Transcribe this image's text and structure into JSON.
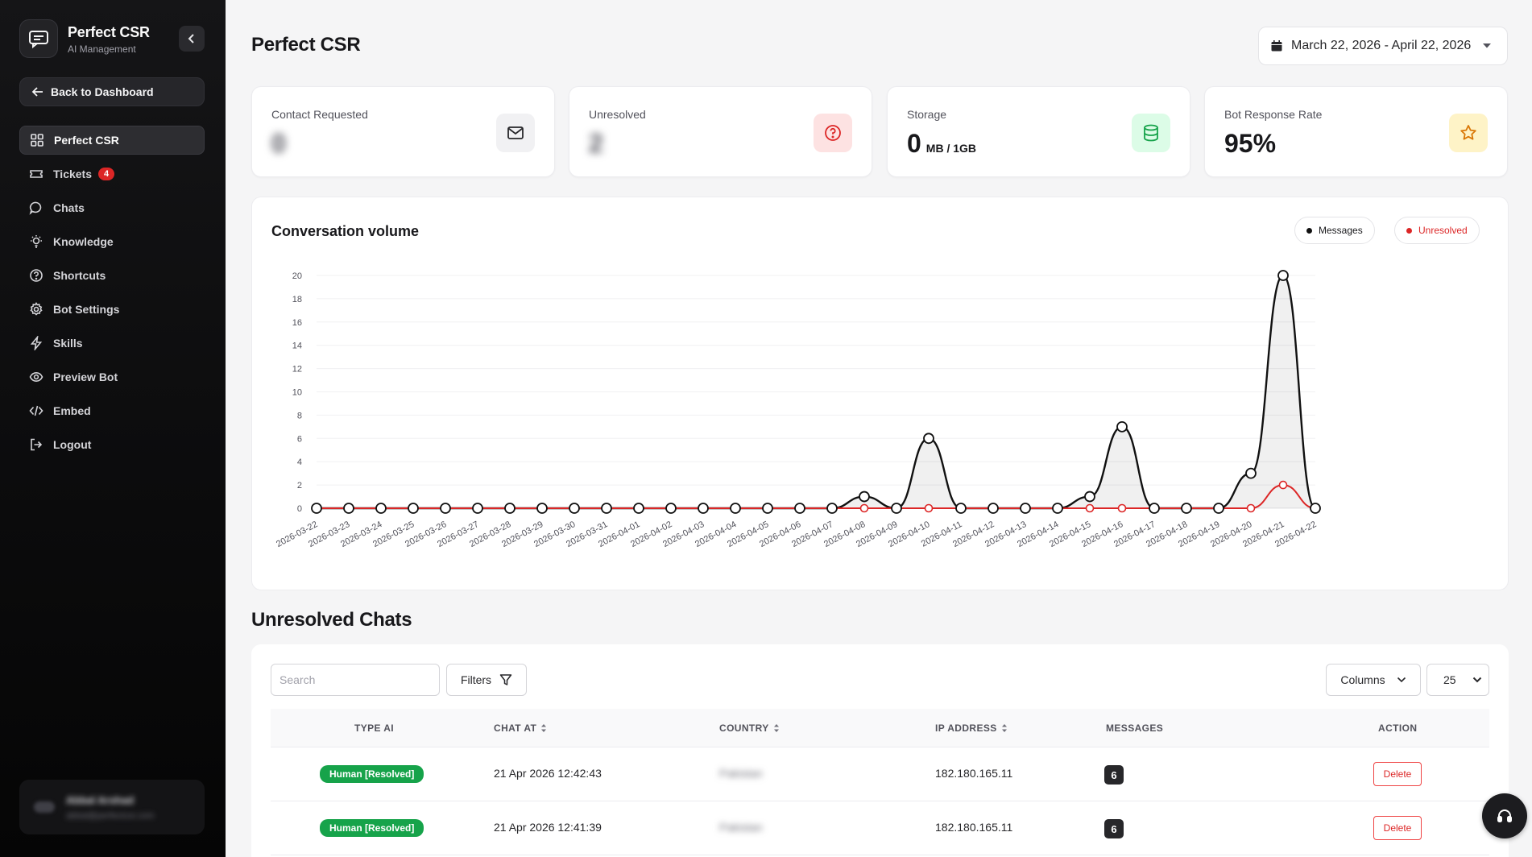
{
  "sidebar": {
    "brand_title": "Perfect CSR",
    "brand_subtitle": "AI Management",
    "back_label": "Back to Dashboard",
    "items": [
      {
        "label": "Perfect CSR",
        "icon": "grid-icon"
      },
      {
        "label": "Tickets",
        "icon": "ticket-icon",
        "badge": "4"
      },
      {
        "label": "Chats",
        "icon": "chat-bubble-icon"
      },
      {
        "label": "Knowledge",
        "icon": "lightbulb-icon"
      },
      {
        "label": "Shortcuts",
        "icon": "help-circle-icon"
      },
      {
        "label": "Bot Settings",
        "icon": "gear-icon"
      },
      {
        "label": "Skills",
        "icon": "lightning-icon"
      },
      {
        "label": "Preview Bot",
        "icon": "eye-icon"
      },
      {
        "label": "Embed",
        "icon": "code-icon"
      },
      {
        "label": "Logout",
        "icon": "logout-icon"
      }
    ],
    "user_name": "Abbal Arshad",
    "user_email": "abbal@perfectcsr.com"
  },
  "header": {
    "title": "Perfect CSR",
    "date_range": "March 22, 2026 - April 22, 2026"
  },
  "stats": [
    {
      "label": "Contact Requested",
      "value": "0",
      "icon": "mail-icon",
      "icon_bg": "#f1f1f3",
      "icon_color": "#27272a"
    },
    {
      "label": "Unresolved",
      "value": "2",
      "icon": "question-icon",
      "icon_bg": "#fde2e2",
      "icon_color": "#dc2626"
    },
    {
      "label": "Storage",
      "value": "0",
      "unit": "MB / 1GB",
      "icon": "database-icon",
      "icon_bg": "#dcfce7",
      "icon_color": "#16a34a"
    },
    {
      "label": "Bot Response Rate",
      "value": "95%",
      "icon": "star-icon",
      "icon_bg": "#fef3c7",
      "icon_color": "#d97706"
    }
  ],
  "chart": {
    "title": "Conversation volume",
    "legend_messages": "Messages",
    "legend_unresolved": "Unresolved",
    "colors": {
      "messages": "#111111",
      "unresolved": "#dc2626"
    }
  },
  "chart_data": {
    "type": "area",
    "title": "Conversation volume",
    "ylim": [
      0,
      20
    ],
    "yticks": [
      0,
      2,
      4,
      6,
      8,
      10,
      12,
      14,
      16,
      18,
      20
    ],
    "legend": "top-right",
    "grid": true,
    "categories": [
      "2026-03-22",
      "2026-03-23",
      "2026-03-24",
      "2026-03-25",
      "2026-03-26",
      "2026-03-27",
      "2026-03-28",
      "2026-03-29",
      "2026-03-30",
      "2026-03-31",
      "2026-04-01",
      "2026-04-02",
      "2026-04-03",
      "2026-04-04",
      "2026-04-05",
      "2026-04-06",
      "2026-04-07",
      "2026-04-08",
      "2026-04-09",
      "2026-04-10",
      "2026-04-11",
      "2026-04-12",
      "2026-04-13",
      "2026-04-14",
      "2026-04-15",
      "2026-04-16",
      "2026-04-17",
      "2026-04-18",
      "2026-04-19",
      "2026-04-20",
      "2026-04-21",
      "2026-04-22"
    ],
    "series": [
      {
        "name": "Messages",
        "values": [
          0,
          0,
          0,
          0,
          0,
          0,
          0,
          0,
          0,
          0,
          0,
          0,
          0,
          0,
          0,
          0,
          0,
          1,
          0,
          6,
          0,
          0,
          0,
          0,
          1,
          7,
          0,
          0,
          0,
          3,
          20,
          0
        ]
      },
      {
        "name": "Unresolved",
        "values": [
          0,
          0,
          0,
          0,
          0,
          0,
          0,
          0,
          0,
          0,
          0,
          0,
          0,
          0,
          0,
          0,
          0,
          0,
          0,
          0,
          0,
          0,
          0,
          0,
          0,
          0,
          0,
          0,
          0,
          0,
          2,
          0
        ]
      }
    ]
  },
  "table": {
    "section_title": "Unresolved Chats",
    "search_placeholder": "Search",
    "filters_label": "Filters",
    "columns_label": "Columns",
    "page_size": "25",
    "headers": {
      "type_ai": "TYPE AI",
      "chat_at": "CHAT AT",
      "country": "COUNTRY",
      "ip": "IP ADDRESS",
      "messages": "MESSAGES",
      "action": "ACTION"
    },
    "rows": [
      {
        "type": "Human [Resolved]",
        "chat_at": "21 Apr 2026 12:42:43",
        "country": "Pakistan",
        "ip": "182.180.165.11",
        "messages": "6",
        "action": "Delete"
      },
      {
        "type": "Human [Resolved]",
        "chat_at": "21 Apr 2026 12:41:39",
        "country": "Pakistan",
        "ip": "182.180.165.11",
        "messages": "6",
        "action": "Delete"
      }
    ]
  }
}
